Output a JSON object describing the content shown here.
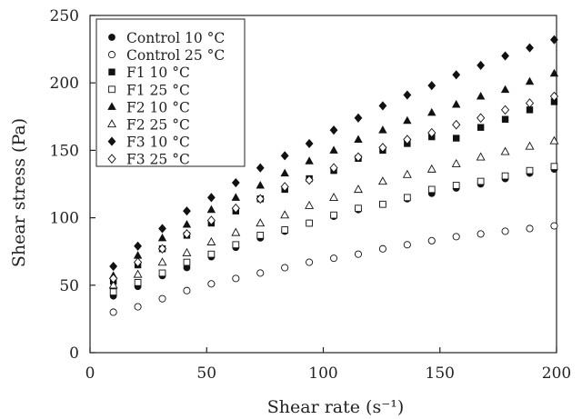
{
  "chart_data": {
    "type": "scatter",
    "title": "",
    "xlabel": "Shear rate (s⁻¹)",
    "ylabel": "Shear stress (Pa)",
    "xlim": [
      0,
      200
    ],
    "ylim": [
      0,
      250
    ],
    "xticks": [
      0,
      50,
      100,
      150,
      200
    ],
    "yticks": [
      0,
      50,
      100,
      150,
      200,
      250
    ],
    "grid": false,
    "legend_position": "top-left",
    "x": [
      10,
      20.5,
      31,
      41.5,
      52,
      62.5,
      73,
      83.5,
      94,
      104.5,
      115,
      125.5,
      136,
      146.5,
      157,
      167.5,
      178,
      188.5,
      199
    ],
    "series": [
      {
        "name": "Control 10 °C",
        "marker": "circle-filled",
        "values": [
          42,
          49,
          57,
          63,
          71,
          78,
          85,
          90,
          96,
          101,
          106,
          110,
          114,
          118,
          122,
          125,
          129,
          133,
          136
        ]
      },
      {
        "name": "Control 25 °C",
        "marker": "circle-open",
        "values": [
          30,
          34,
          40,
          46,
          51,
          55,
          59,
          63,
          67,
          70,
          73,
          77,
          80,
          83,
          86,
          88,
          90,
          92,
          94
        ]
      },
      {
        "name": "F1 10 °C",
        "marker": "square-filled",
        "values": [
          53,
          65,
          77,
          87,
          96,
          105,
          114,
          121,
          129,
          135,
          144,
          150,
          155,
          160,
          159,
          167,
          173,
          180,
          186
        ]
      },
      {
        "name": "F1 25 °C",
        "marker": "square-open",
        "values": [
          45,
          52,
          59,
          67,
          73,
          80,
          87,
          91,
          96,
          102,
          107,
          110,
          115,
          121,
          124,
          127,
          131,
          135,
          138
        ]
      },
      {
        "name": "F2 10 °C",
        "marker": "triangle-filled",
        "values": [
          57,
          72,
          85,
          95,
          106,
          115,
          124,
          133,
          142,
          150,
          158,
          165,
          172,
          178,
          184,
          190,
          195,
          201,
          207
        ]
      },
      {
        "name": "F2 25 °C",
        "marker": "triangle-open",
        "values": [
          50,
          58,
          67,
          74,
          82,
          89,
          96,
          102,
          109,
          115,
          121,
          127,
          132,
          136,
          140,
          145,
          149,
          153,
          157
        ]
      },
      {
        "name": "F3 10 °C",
        "marker": "diamond-filled",
        "values": [
          64,
          79,
          92,
          105,
          115,
          126,
          137,
          146,
          155,
          165,
          174,
          183,
          191,
          198,
          206,
          213,
          220,
          226,
          232
        ]
      },
      {
        "name": "F3 25 °C",
        "marker": "diamond-open",
        "values": [
          55,
          67,
          77,
          88,
          98,
          107,
          114,
          123,
          128,
          137,
          145,
          152,
          158,
          163,
          169,
          174,
          180,
          185,
          190
        ]
      }
    ]
  }
}
